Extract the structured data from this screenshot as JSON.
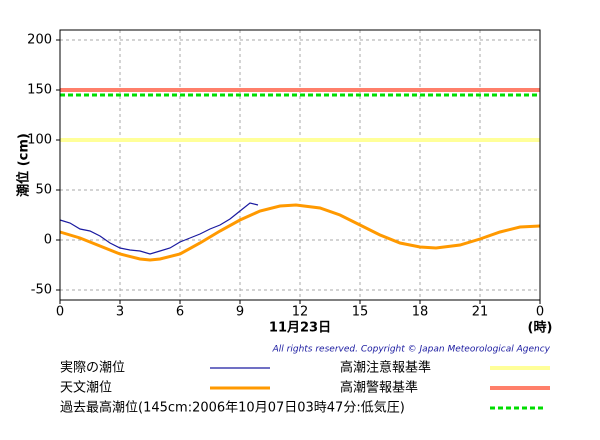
{
  "chart_data": {
    "type": "line",
    "y_label": "潮位 (cm)",
    "x_label": "11月23日",
    "x_unit_label": "(時)",
    "copyright": "All rights reserved. Copyright © Japan Meteorological Agency",
    "xlim": [
      0,
      24
    ],
    "xticks": [
      0,
      3,
      6,
      9,
      12,
      15,
      18,
      21,
      {
        "value": 24,
        "label": "0"
      }
    ],
    "ylim": [
      -60,
      210
    ],
    "yticks": [
      -50,
      0,
      50,
      100,
      150,
      200
    ],
    "grid": true,
    "series": [
      {
        "name": "実際の潮位",
        "color": "#1a1aa0",
        "x": [
          0,
          0.5,
          1,
          1.5,
          2,
          2.5,
          3,
          3.5,
          4,
          4.5,
          5,
          5.5,
          6,
          6.5,
          7,
          7.5,
          8,
          8.5,
          9,
          9.5,
          9.9
        ],
        "values": [
          20,
          17,
          11,
          9,
          4,
          -3,
          -8,
          -10,
          -11,
          -14,
          -11,
          -8,
          -2,
          2,
          6,
          11,
          15,
          21,
          29,
          37,
          35
        ]
      },
      {
        "name": "天文潮位",
        "color": "#ff9900",
        "x": [
          0,
          1,
          2,
          3,
          4,
          4.5,
          5,
          6,
          7,
          8,
          9,
          10,
          11,
          11.8,
          13,
          14,
          15,
          16,
          17,
          18,
          18.8,
          20,
          21,
          22,
          23,
          24
        ],
        "values": [
          8,
          2,
          -6,
          -14,
          -19,
          -20,
          -19,
          -14,
          -3,
          9,
          20,
          29,
          34,
          35,
          32,
          25,
          15,
          5,
          -3,
          -7,
          -8,
          -5,
          1,
          8,
          13,
          14
        ]
      }
    ],
    "reference_lines": [
      {
        "name": "高潮注意報基準",
        "value": 100,
        "color": "#ffff99"
      },
      {
        "name": "高潮警報基準",
        "value": 150,
        "color": "#ff7f6a"
      },
      {
        "name": "過去最高潮位(145cm:2006年10月07日03時47分:低気圧)",
        "value": 145,
        "color": "#00dd00",
        "dashed": true
      }
    ]
  }
}
